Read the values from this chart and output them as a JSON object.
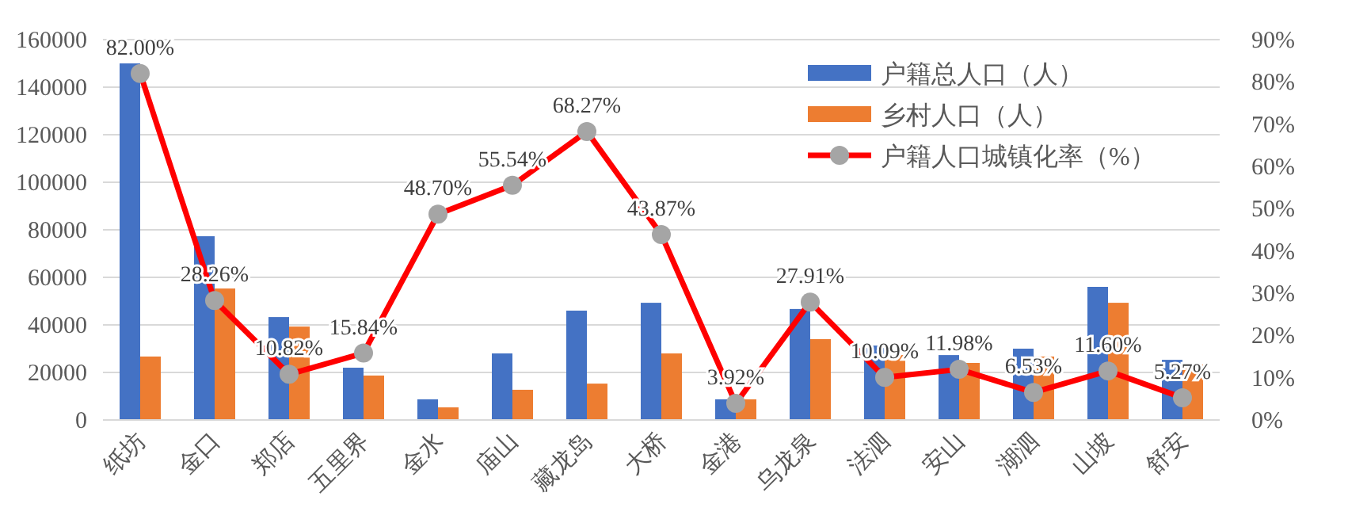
{
  "chart_data": {
    "type": "bar",
    "categories": [
      "纸坊",
      "金口",
      "郑店",
      "五里界",
      "金水",
      "庙山",
      "藏龙岛",
      "大桥",
      "金港",
      "乌龙泉",
      "法泗",
      "安山",
      "湖泗",
      "山坡",
      "舒安"
    ],
    "series": [
      {
        "name": "户籍总人口（人）",
        "color": "#4472c4",
        "values": [
          150000,
          77300,
          43300,
          22000,
          8700,
          28000,
          46000,
          49300,
          8700,
          46700,
          31300,
          27300,
          30000,
          56000,
          25300
        ]
      },
      {
        "name": "乡村人口（人）",
        "color": "#ed7d31",
        "values": [
          26700,
          55300,
          39300,
          18700,
          5300,
          12700,
          15300,
          28000,
          8700,
          34000,
          27300,
          24000,
          26700,
          49300,
          23300
        ]
      },
      {
        "name": "户籍人口城镇化率（%）",
        "type": "line",
        "axis": "y2",
        "color": "#ff0000",
        "marker": "circle",
        "values": [
          82.0,
          28.26,
          10.82,
          15.84,
          48.7,
          55.54,
          68.27,
          43.87,
          3.92,
          27.91,
          10.09,
          11.98,
          6.53,
          11.6,
          5.27
        ],
        "value_labels": [
          "82.00%",
          "28.26%",
          "10.82%",
          "15.84%",
          "48.70%",
          "55.54%",
          "68.27%",
          "43.87%",
          "3.92%",
          "27.91%",
          "10.09%",
          "11.98%",
          "6.53%",
          "11.60%",
          "5.27%"
        ]
      }
    ],
    "ylim": [
      0,
      160000
    ],
    "yticks": [
      0,
      20000,
      40000,
      60000,
      80000,
      100000,
      120000,
      140000,
      160000
    ],
    "y2lim": [
      0,
      90
    ],
    "y2ticks": [
      {
        "value": 0,
        "label": "0%"
      },
      {
        "value": 10,
        "label": "10%"
      },
      {
        "value": 20,
        "label": "20%"
      },
      {
        "value": 30,
        "label": "30%"
      },
      {
        "value": 40,
        "label": "40%"
      },
      {
        "value": 50,
        "label": "50%"
      },
      {
        "value": 60,
        "label": "60%"
      },
      {
        "value": 70,
        "label": "70%"
      },
      {
        "value": 80,
        "label": "80%"
      },
      {
        "value": 90,
        "label": "90%"
      }
    ],
    "grid": "y",
    "legend": "top right"
  }
}
